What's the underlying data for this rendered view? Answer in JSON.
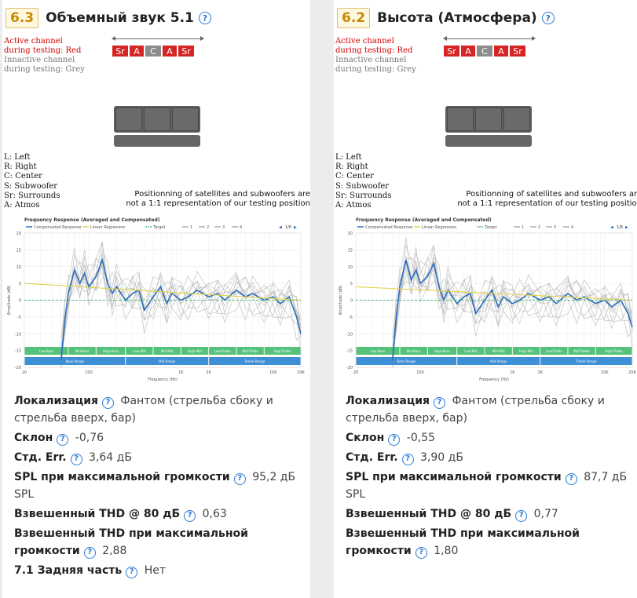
{
  "legend": {
    "active_1": "Active channel",
    "active_2": "during testing: Red",
    "inactive_1": "Innactive channel",
    "inactive_2": "during testing: Grey"
  },
  "abbreviations": [
    "L: Left",
    "R: Right",
    "C: Center",
    "S: Subwoofer",
    "Sr: Surrounds",
    "A: Atmos"
  ],
  "positioning_note_1": "Positionning of satellites and subwoofers are",
  "positioning_note_2": "not a 1:1 representation of our testing position",
  "chart_common": {
    "title": "Frequency Response (Averaged and Compensated)",
    "legend_items": [
      "Compensated Response",
      "Linear Regression",
      "Target",
      "1",
      "2",
      "3",
      "4"
    ],
    "page": "1/6",
    "ylabel": "Amplitude (dB)",
    "xlabel": "Frequency (Hz)",
    "y_ticks": [
      "20",
      "15",
      "10",
      "5",
      "0",
      "-5",
      "-10",
      "-15",
      "-20"
    ],
    "x_ticks": [
      "20",
      "100",
      "1K",
      "2K",
      "10K",
      "20K"
    ],
    "bands_top": [
      "Low-Bass",
      "Mid-Bass",
      "High-Bass",
      "Low-Mid",
      "Mid-Mid",
      "High-Mid",
      "Low-Treble",
      "Mid-Treble",
      "High-Treble"
    ],
    "bands_bottom": [
      "Bass Range",
      "Mid Range",
      "Treble Range"
    ]
  },
  "cards": [
    {
      "score": "6.3",
      "title": "Объемный звук 5.1",
      "channels": [
        {
          "label": "Sr",
          "color": "red"
        },
        {
          "label": "A",
          "color": "red"
        },
        {
          "label": "C",
          "color": "grey"
        },
        {
          "label": "A",
          "color": "red"
        },
        {
          "label": "Sr",
          "color": "red"
        }
      ],
      "stats": [
        {
          "label": "Локализация",
          "value": "Фантом (стрельба сбоку и стрельба вверх, бар)"
        },
        {
          "label": "Склон",
          "value": "-0,76"
        },
        {
          "label": "Стд. Err.",
          "value": "3,64 дБ"
        },
        {
          "label": "SPL при максимальной громкости",
          "value": "95,2 дБ SPL"
        },
        {
          "label": "Взвешенный THD @ 80 дБ",
          "value": "0,63"
        },
        {
          "label": "Взвешенный THD при максимальной громкости",
          "value": "2,88"
        },
        {
          "label": "7.1 Задняя часть",
          "value": "Нет"
        }
      ],
      "chart_data": {
        "type": "line",
        "title": "Frequency Response (Averaged and Compensated)",
        "xlabel": "Frequency (Hz)",
        "ylabel": "Amplitude (dB)",
        "xscale": "log",
        "xlim": [
          20,
          20000
        ],
        "ylim": [
          -20,
          20
        ],
        "series": [
          {
            "name": "Compensated Response",
            "x": [
              50,
              55,
              60,
              70,
              80,
              90,
              100,
              120,
              140,
              160,
              180,
              200,
              250,
              300,
              350,
              400,
              500,
              600,
              700,
              800,
              1000,
              1200,
              1500,
              2000,
              2500,
              3000,
              4000,
              5000,
              6000,
              8000,
              10000,
              12000,
              15000,
              18000,
              20000
            ],
            "y": [
              -18,
              -6,
              2,
              9,
              5,
              8,
              4,
              7,
              12,
              5,
              2,
              4,
              0,
              2,
              3,
              -3,
              1,
              4,
              -1,
              2,
              0,
              1,
              3,
              1,
              2,
              0,
              3,
              1,
              2,
              0,
              1,
              -1,
              1,
              -5,
              -10
            ]
          },
          {
            "name": "Linear Regression",
            "x": [
              20,
              20000
            ],
            "y": [
              5,
              0
            ]
          },
          {
            "name": "Target",
            "x": [
              20,
              20000
            ],
            "y": [
              0,
              0
            ]
          }
        ]
      }
    },
    {
      "score": "6.2",
      "title": "Высота (Атмосфера)",
      "channels": [
        {
          "label": "Sr",
          "color": "red"
        },
        {
          "label": "A",
          "color": "red"
        },
        {
          "label": "C",
          "color": "grey"
        },
        {
          "label": "A",
          "color": "red"
        },
        {
          "label": "Sr",
          "color": "red"
        }
      ],
      "stats": [
        {
          "label": "Локализация",
          "value": "Фантом (стрельба сбоку и стрельба вверх, бар)"
        },
        {
          "label": "Склон",
          "value": "-0,55"
        },
        {
          "label": "Стд. Err.",
          "value": "3,90 дБ"
        },
        {
          "label": "SPL при максимальной громкости",
          "value": "87,7 дБ SPL"
        },
        {
          "label": "Взвешенный THD @ 80 дБ",
          "value": "0,77"
        },
        {
          "label": "Взвешенный THD при максимальной громкости",
          "value": "1,80"
        }
      ],
      "chart_data": {
        "type": "line",
        "title": "Frequency Response (Averaged and Compensated)",
        "xlabel": "Frequency (Hz)",
        "ylabel": "Amplitude (dB)",
        "xscale": "log",
        "xlim": [
          20,
          20000
        ],
        "ylim": [
          -20,
          20
        ],
        "series": [
          {
            "name": "Compensated Response",
            "x": [
              50,
              55,
              60,
              70,
              80,
              90,
              100,
              120,
              140,
              160,
              180,
              200,
              250,
              300,
              350,
              400,
              500,
              600,
              700,
              800,
              1000,
              1200,
              1500,
              2000,
              2500,
              3000,
              4000,
              5000,
              6000,
              8000,
              10000,
              12000,
              15000,
              18000,
              20000
            ],
            "y": [
              -18,
              -5,
              4,
              12,
              6,
              9,
              5,
              7,
              11,
              4,
              0,
              3,
              -1,
              1,
              2,
              -4,
              0,
              3,
              -2,
              1,
              -1,
              0,
              2,
              0,
              1,
              -1,
              2,
              0,
              1,
              -1,
              0,
              -2,
              0,
              -4,
              -8
            ]
          },
          {
            "name": "Linear Regression",
            "x": [
              20,
              20000
            ],
            "y": [
              4,
              0
            ]
          },
          {
            "name": "Target",
            "x": [
              20,
              20000
            ],
            "y": [
              0,
              0
            ]
          }
        ]
      }
    }
  ]
}
